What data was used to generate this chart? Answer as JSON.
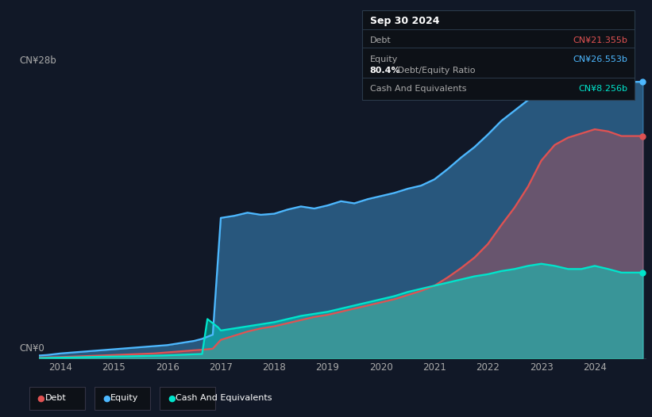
{
  "background_color": "#111827",
  "plot_bg_color": "#111827",
  "ylabel_top": "CN¥28b",
  "ylabel_bottom": "CN¥0",
  "x_ticks": [
    2014,
    2015,
    2016,
    2017,
    2018,
    2019,
    2020,
    2021,
    2022,
    2023,
    2024
  ],
  "ylim": [
    0,
    28
  ],
  "xlim": [
    2013.6,
    2024.95
  ],
  "debt_color": "#e05252",
  "equity_color": "#4db8ff",
  "cash_color": "#00e5cc",
  "legend_items": [
    "Debt",
    "Equity",
    "Cash And Equivalents"
  ],
  "tooltip": {
    "title": "Sep 30 2024",
    "debt_label": "Debt",
    "debt_value": "CN¥21.355b",
    "equity_label": "Equity",
    "equity_value": "CN¥26.553b",
    "ratio_bold": "80.4%",
    "ratio_text": " Debt/Equity Ratio",
    "cash_label": "Cash And Equivalents",
    "cash_value": "CN¥8.256b"
  },
  "equity_data": {
    "years": [
      2013.6,
      2013.75,
      2014.0,
      2014.25,
      2014.5,
      2014.75,
      2015.0,
      2015.25,
      2015.5,
      2015.75,
      2016.0,
      2016.25,
      2016.5,
      2016.65,
      2016.75,
      2016.85,
      2017.0,
      2017.25,
      2017.5,
      2017.75,
      2018.0,
      2018.25,
      2018.5,
      2018.75,
      2019.0,
      2019.25,
      2019.5,
      2019.75,
      2020.0,
      2020.25,
      2020.5,
      2020.75,
      2021.0,
      2021.25,
      2021.5,
      2021.75,
      2022.0,
      2022.25,
      2022.5,
      2022.75,
      2023.0,
      2023.25,
      2023.5,
      2023.75,
      2024.0,
      2024.25,
      2024.5,
      2024.75,
      2024.9
    ],
    "values": [
      0.3,
      0.35,
      0.5,
      0.6,
      0.7,
      0.8,
      0.9,
      1.0,
      1.1,
      1.2,
      1.3,
      1.5,
      1.7,
      1.9,
      2.1,
      2.3,
      13.5,
      13.7,
      14.0,
      13.8,
      13.9,
      14.3,
      14.6,
      14.4,
      14.7,
      15.1,
      14.9,
      15.3,
      15.6,
      15.9,
      16.3,
      16.6,
      17.2,
      18.2,
      19.3,
      20.3,
      21.5,
      22.8,
      23.8,
      24.8,
      25.8,
      27.2,
      28.0,
      27.5,
      26.8,
      27.3,
      26.8,
      26.553,
      26.553
    ]
  },
  "debt_data": {
    "years": [
      2013.6,
      2013.75,
      2014.0,
      2014.25,
      2014.5,
      2014.75,
      2015.0,
      2015.25,
      2015.5,
      2015.75,
      2016.0,
      2016.25,
      2016.5,
      2016.65,
      2016.75,
      2016.85,
      2017.0,
      2017.25,
      2017.5,
      2017.75,
      2018.0,
      2018.25,
      2018.5,
      2018.75,
      2019.0,
      2019.25,
      2019.5,
      2019.75,
      2020.0,
      2020.25,
      2020.5,
      2020.75,
      2021.0,
      2021.25,
      2021.5,
      2021.75,
      2022.0,
      2022.25,
      2022.5,
      2022.75,
      2023.0,
      2023.25,
      2023.5,
      2023.75,
      2024.0,
      2024.25,
      2024.5,
      2024.75,
      2024.9
    ],
    "values": [
      0.1,
      0.12,
      0.15,
      0.2,
      0.25,
      0.3,
      0.35,
      0.4,
      0.45,
      0.5,
      0.6,
      0.7,
      0.8,
      0.85,
      0.9,
      0.95,
      1.8,
      2.2,
      2.6,
      2.9,
      3.1,
      3.4,
      3.7,
      4.0,
      4.2,
      4.5,
      4.8,
      5.1,
      5.4,
      5.7,
      6.1,
      6.5,
      7.0,
      7.8,
      8.7,
      9.7,
      11.0,
      12.8,
      14.5,
      16.5,
      19.0,
      20.5,
      21.2,
      21.6,
      22.0,
      21.8,
      21.355,
      21.355,
      21.355
    ]
  },
  "cash_data": {
    "years": [
      2013.6,
      2013.75,
      2014.0,
      2014.25,
      2014.5,
      2014.75,
      2015.0,
      2015.25,
      2015.5,
      2015.75,
      2016.0,
      2016.25,
      2016.5,
      2016.65,
      2016.75,
      2016.85,
      2016.95,
      2017.0,
      2017.25,
      2017.5,
      2017.75,
      2018.0,
      2018.25,
      2018.5,
      2018.75,
      2019.0,
      2019.25,
      2019.5,
      2019.75,
      2020.0,
      2020.25,
      2020.5,
      2020.75,
      2021.0,
      2021.25,
      2021.5,
      2021.75,
      2022.0,
      2022.25,
      2022.5,
      2022.75,
      2023.0,
      2023.25,
      2023.5,
      2023.75,
      2024.0,
      2024.25,
      2024.5,
      2024.75,
      2024.9
    ],
    "values": [
      0.05,
      0.07,
      0.1,
      0.12,
      0.15,
      0.18,
      0.2,
      0.22,
      0.25,
      0.28,
      0.32,
      0.37,
      0.42,
      0.45,
      3.8,
      3.4,
      3.0,
      2.7,
      2.9,
      3.1,
      3.3,
      3.5,
      3.8,
      4.1,
      4.3,
      4.5,
      4.8,
      5.1,
      5.4,
      5.7,
      6.0,
      6.4,
      6.7,
      7.0,
      7.3,
      7.6,
      7.9,
      8.1,
      8.4,
      8.6,
      8.9,
      9.1,
      8.9,
      8.6,
      8.6,
      8.9,
      8.6,
      8.256,
      8.256,
      8.256
    ]
  }
}
